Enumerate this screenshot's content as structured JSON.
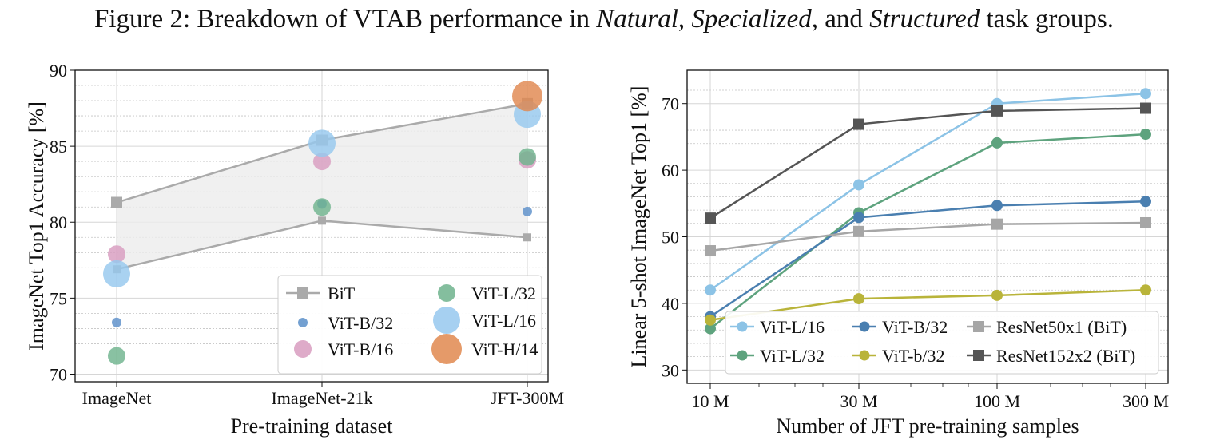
{
  "caption": {
    "prefix": "Figure 2: Breakdown of VTAB performance in ",
    "natural": "Natural",
    "sep1": ", ",
    "specialized": "Specialized",
    "sep2": ", and ",
    "structured": "Structured",
    "suffix": " task groups."
  },
  "chart_data": [
    {
      "type": "scatter",
      "xlabel": "Pre-training dataset",
      "ylabel": "ImageNet Top1 Accuracy [%]",
      "categories": [
        "ImageNet",
        "ImageNet-21k",
        "JFT-300M"
      ],
      "ylim": [
        69.5,
        90
      ],
      "yticks": [
        70,
        75,
        80,
        85,
        90
      ],
      "grid": true,
      "legend_placement": "bottom-right",
      "bit": {
        "name": "BiT",
        "upper": [
          81.3,
          85.4,
          87.8
        ],
        "lower": [
          76.9,
          80.1,
          79.0
        ],
        "color": "#aaaaaa"
      },
      "series": [
        {
          "name": "ViT-B/32",
          "values": [
            73.4,
            81.2,
            80.7
          ],
          "size": 1,
          "color": "#5b8fc9"
        },
        {
          "name": "ViT-B/16",
          "values": [
            77.9,
            84.0,
            84.1
          ],
          "size": 2,
          "color": "#d89cc0"
        },
        {
          "name": "ViT-L/32",
          "values": [
            71.2,
            81.0,
            84.3
          ],
          "size": 2,
          "color": "#6fb38d"
        },
        {
          "name": "ViT-L/16",
          "values": [
            76.6,
            85.2,
            87.1
          ],
          "size": 3,
          "color": "#96c8ee"
        },
        {
          "name": "ViT-H/14",
          "values": [
            null,
            null,
            88.3
          ],
          "size": 4,
          "color": "#e0884f"
        }
      ]
    },
    {
      "type": "line",
      "xlabel": "Number of JFT pre-training samples",
      "ylabel": "Linear 5-shot ImageNet Top1 [%]",
      "x": [
        9,
        30,
        90,
        300
      ],
      "xtick_labels": [
        "10 M",
        "30 M",
        "100 M",
        "300 M"
      ],
      "xscale": "log",
      "ylim": [
        28,
        75
      ],
      "yticks": [
        30,
        40,
        50,
        60,
        70
      ],
      "grid": true,
      "legend_placement": "bottom-right",
      "series": [
        {
          "name": "ViT-L/16",
          "values": [
            42.0,
            57.8,
            70.0,
            71.5
          ],
          "color": "#8cc3e6",
          "marker": "circle"
        },
        {
          "name": "ViT-L/32",
          "values": [
            36.2,
            53.6,
            64.1,
            65.4
          ],
          "color": "#5ea37e",
          "marker": "circle"
        },
        {
          "name": "ViT-B/32",
          "values": [
            38.0,
            52.9,
            54.7,
            55.3
          ],
          "color": "#4a7fb0",
          "marker": "circle"
        },
        {
          "name": "ViT-b/32",
          "values": [
            37.5,
            40.7,
            41.2,
            42.0
          ],
          "color": "#b9b43a",
          "marker": "circle"
        },
        {
          "name": "ResNet50x1 (BiT)",
          "values": [
            47.9,
            50.8,
            51.9,
            52.1
          ],
          "color": "#a6a6a6",
          "marker": "square"
        },
        {
          "name": "ResNet152x2 (BiT)",
          "values": [
            52.8,
            66.9,
            68.9,
            69.3
          ],
          "color": "#555555",
          "marker": "square"
        }
      ]
    }
  ]
}
